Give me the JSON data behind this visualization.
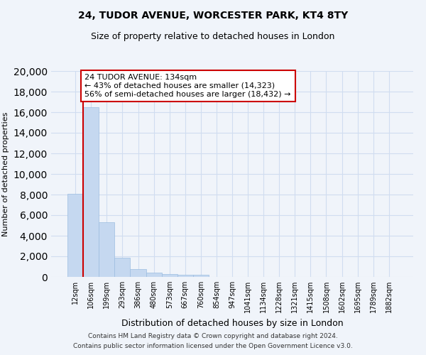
{
  "title1": "24, TUDOR AVENUE, WORCESTER PARK, KT4 8TY",
  "title2": "Size of property relative to detached houses in London",
  "xlabel": "Distribution of detached houses by size in London",
  "ylabel": "Number of detached properties",
  "bar_color": "#c5d8f0",
  "bar_edge_color": "#9bbde0",
  "categories": [
    "12sqm",
    "106sqm",
    "199sqm",
    "293sqm",
    "386sqm",
    "480sqm",
    "573sqm",
    "667sqm",
    "760sqm",
    "854sqm",
    "947sqm",
    "1041sqm",
    "1134sqm",
    "1228sqm",
    "1321sqm",
    "1415sqm",
    "1508sqm",
    "1602sqm",
    "1695sqm",
    "1789sqm",
    "1882sqm"
  ],
  "values": [
    8100,
    16500,
    5300,
    1850,
    750,
    380,
    270,
    230,
    210,
    0,
    0,
    0,
    0,
    0,
    0,
    0,
    0,
    0,
    0,
    0,
    0
  ],
  "ylim": [
    0,
    20000
  ],
  "yticks": [
    0,
    2000,
    4000,
    6000,
    8000,
    10000,
    12000,
    14000,
    16000,
    18000,
    20000
  ],
  "property_line_x": 1.0,
  "annotation_title": "24 TUDOR AVENUE: 134sqm",
  "annotation_line1": "← 43% of detached houses are smaller (14,323)",
  "annotation_line2": "56% of semi-detached houses are larger (18,432) →",
  "annotation_box_color": "#ffffff",
  "annotation_border_color": "#cc0000",
  "footer1": "Contains HM Land Registry data © Crown copyright and database right 2024.",
  "footer2": "Contains public sector information licensed under the Open Government Licence v3.0.",
  "bg_color": "#f0f4fa",
  "grid_color": "#d0ddf0"
}
